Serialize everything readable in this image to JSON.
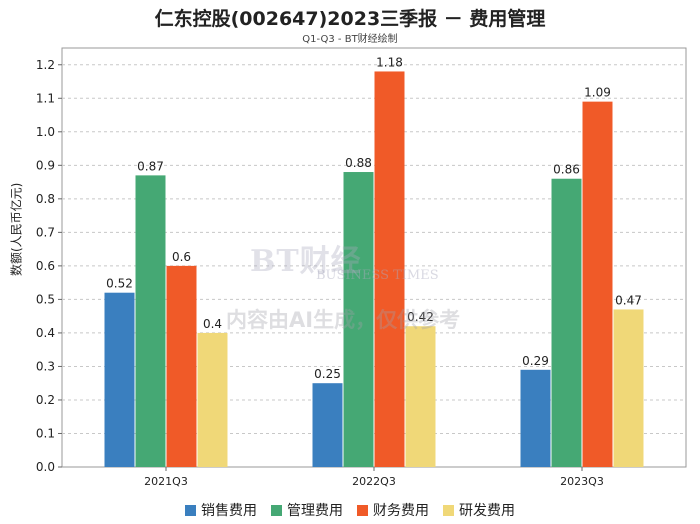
{
  "chart_data": {
    "type": "bar",
    "title": "仁东控股(002647)2023三季报 － 费用管理",
    "subtitle": "Q1-Q3 - BT财经绘制",
    "ylabel": "数额(人民币亿元)",
    "xlabel": "",
    "categories": [
      "2021Q3",
      "2022Q3",
      "2023Q3"
    ],
    "ylim": [
      0,
      1.25
    ],
    "yticks": [
      0.0,
      0.1,
      0.2,
      0.3,
      0.4,
      0.5,
      0.6,
      0.7,
      0.8,
      0.9,
      1.0,
      1.1,
      1.2
    ],
    "grid": true,
    "legend_position": "bottom",
    "series": [
      {
        "name": "销售费用",
        "color": "#3a7fbf",
        "values": [
          0.52,
          0.25,
          0.29
        ]
      },
      {
        "name": "管理费用",
        "color": "#45a874",
        "values": [
          0.87,
          0.88,
          0.86
        ]
      },
      {
        "name": "财务费用",
        "color": "#f05a28",
        "values": [
          0.6,
          1.18,
          1.09
        ]
      },
      {
        "name": "研发费用",
        "color": "#f0d878",
        "values": [
          0.4,
          0.42,
          0.47
        ]
      }
    ]
  },
  "watermark": {
    "brand": "BT财经",
    "brand_en": "BUSINESS TIMES",
    "notice": "内容由AI生成，仅供参考"
  }
}
